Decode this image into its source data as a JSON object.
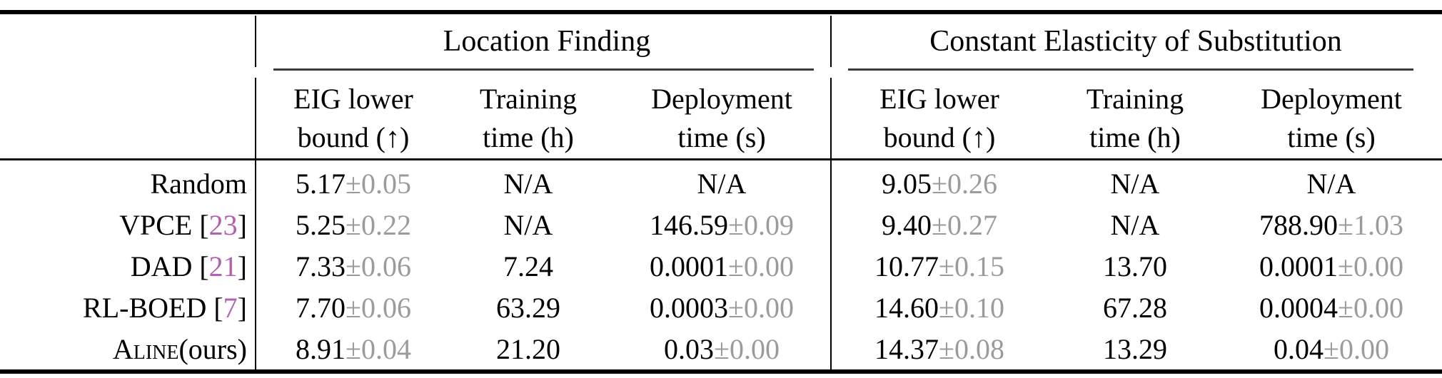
{
  "colors": {
    "citation": "#b261b2",
    "muted": "#9b9b9b",
    "rule": "#000000"
  },
  "header": {
    "groups": [
      {
        "title": "Location Finding"
      },
      {
        "title": "Constant Elasticity of Substitution"
      }
    ],
    "metric_columns": [
      {
        "line1": "EIG lower",
        "line2": "bound (↑)"
      },
      {
        "line1": "Training",
        "line2": "time (h)"
      },
      {
        "line1": "Deployment",
        "line2": "time (s)"
      }
    ]
  },
  "rows": [
    {
      "label": {
        "pre": "Random",
        "cite": "",
        "post": ""
      },
      "lf": {
        "eig": {
          "v": "5.17",
          "e": "±0.05"
        },
        "train": {
          "v": "N/A",
          "e": ""
        },
        "deploy": {
          "v": "N/A",
          "e": ""
        }
      },
      "ces": {
        "eig": {
          "v": "9.05",
          "e": "±0.26"
        },
        "train": {
          "v": "N/A",
          "e": ""
        },
        "deploy": {
          "v": "N/A",
          "e": ""
        }
      }
    },
    {
      "label": {
        "pre": "VPCE [",
        "cite": "23",
        "post": "]"
      },
      "lf": {
        "eig": {
          "v": "5.25",
          "e": "±0.22"
        },
        "train": {
          "v": "N/A",
          "e": ""
        },
        "deploy": {
          "v": "146.59",
          "e": "±0.09"
        }
      },
      "ces": {
        "eig": {
          "v": "9.40",
          "e": "±0.27"
        },
        "train": {
          "v": "N/A",
          "e": ""
        },
        "deploy": {
          "v": "788.90",
          "e": "±1.03"
        }
      }
    },
    {
      "label": {
        "pre": "DAD [",
        "cite": "21",
        "post": "]"
      },
      "lf": {
        "eig": {
          "v": "7.33",
          "e": "±0.06"
        },
        "train": {
          "v": "7.24",
          "e": ""
        },
        "deploy": {
          "v": "0.0001",
          "e": "±0.00"
        }
      },
      "ces": {
        "eig": {
          "v": "10.77",
          "e": "±0.15"
        },
        "train": {
          "v": "13.70",
          "e": ""
        },
        "deploy": {
          "v": "0.0001",
          "e": "±0.00"
        }
      }
    },
    {
      "label": {
        "pre": "RL-BOED [",
        "cite": "7",
        "post": "]"
      },
      "lf": {
        "eig": {
          "v": "7.70",
          "e": "±0.06"
        },
        "train": {
          "v": "63.29",
          "e": ""
        },
        "deploy": {
          "v": "0.0003",
          "e": "±0.00"
        }
      },
      "ces": {
        "eig": {
          "v": "14.60",
          "e": "±0.10"
        },
        "train": {
          "v": "67.28",
          "e": ""
        },
        "deploy": {
          "v": "0.0004",
          "e": "±0.00"
        }
      }
    },
    {
      "label": {
        "pre": "Aline",
        "cite": "",
        "post": " (ours)"
      },
      "lf": {
        "eig": {
          "v": "8.91",
          "e": "±0.04"
        },
        "train": {
          "v": "21.20",
          "e": ""
        },
        "deploy": {
          "v": "0.03",
          "e": "±0.00"
        }
      },
      "ces": {
        "eig": {
          "v": "14.37",
          "e": "±0.08"
        },
        "train": {
          "v": "13.29",
          "e": ""
        },
        "deploy": {
          "v": "0.04",
          "e": "±0.00"
        }
      }
    }
  ]
}
